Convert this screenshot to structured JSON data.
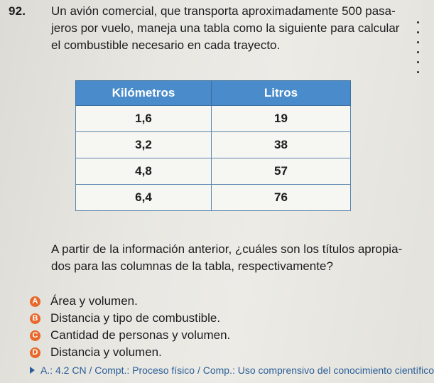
{
  "question": {
    "number": "92.",
    "lines": [
      "Un avión comercial, que transporta aproximadamente 500 pasa-",
      "jeros por vuelo, maneja una tabla como la siguiente para calcular",
      "el combustible necesario en cada trayecto."
    ]
  },
  "table": {
    "headers": [
      "Kilómetros",
      "Litros"
    ],
    "rows": [
      [
        "1,6",
        "19"
      ],
      [
        "3,2",
        "38"
      ],
      [
        "4,8",
        "57"
      ],
      [
        "6,4",
        "76"
      ]
    ]
  },
  "prompt": {
    "lines": [
      "A partir de la información anterior, ¿cuáles son los títulos apropia-",
      "dos para las columnas de la tabla, respectivamente?"
    ]
  },
  "options": [
    {
      "letter": "A",
      "text": "Área y volumen."
    },
    {
      "letter": "B",
      "text": "Distancia y tipo de combustible."
    },
    {
      "letter": "C",
      "text": "Cantidad de personas y volumen."
    },
    {
      "letter": "D",
      "text": "Distancia y volumen."
    }
  ],
  "answer_key": "A.: 4.2 CN / Compt.: Proceso físico / Comp.: Uso comprensivo del conocimiento científico",
  "colors": {
    "table_header": "#4a8ccb",
    "option_badge": "#e7682a",
    "answer_text": "#2a5f99"
  }
}
